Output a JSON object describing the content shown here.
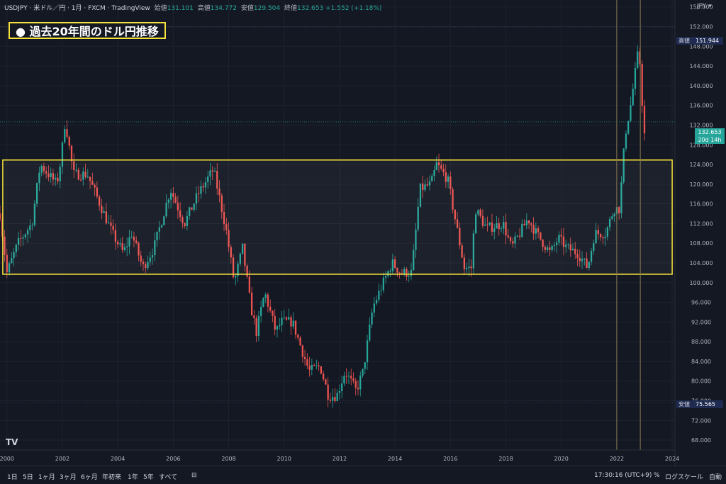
{
  "header": {
    "symbol": "USDJPY · 米ドル／円 · 1月 · FXCM · TradingView",
    "open_label": "始値",
    "open": "131.101",
    "high_label": "高値",
    "high": "134.772",
    "low_label": "安値",
    "low": "129.504",
    "close_label": "終値",
    "close": "132.653",
    "change": "+1.552 (+1.18%)"
  },
  "banner": "● 過去20年間のドル円推移",
  "currency": "JPY",
  "tags": {
    "high_label": "高値",
    "high_value": "151.944",
    "low_label": "安値",
    "low_value": "75.565",
    "last_value": "132.653",
    "countdown": "20d 14h"
  },
  "bottombar": {
    "timeframes": [
      "1日",
      "5日",
      "1ヶ月",
      "3ヶ月",
      "6ヶ月",
      "年初来",
      "1年",
      "5年",
      "すべて"
    ],
    "time": "17:30:16 (UTC+9)",
    "percent": "%",
    "log": "ログスケール",
    "auto": "自動"
  },
  "colors": {
    "up": "#26a69a",
    "down": "#ef5350",
    "box": "#f5e23c",
    "background": "#141823"
  },
  "chart_data": {
    "type": "candlestick",
    "xlim": [
      1999.75,
      2024.1
    ],
    "ylim": [
      66,
      157.4
    ],
    "x_ticks": [
      "2000",
      "2002",
      "2004",
      "2006",
      "2008",
      "2010",
      "2012",
      "2014",
      "2016",
      "2018",
      "2020",
      "2022",
      "2024"
    ],
    "y_ticks": [
      "156.000",
      "152.000",
      "148.000",
      "144.000",
      "140.000",
      "136.000",
      "132.000",
      "128.000",
      "124.000",
      "120.000",
      "116.000",
      "112.000",
      "108.000",
      "104.000",
      "100.000",
      "96.000",
      "92.000",
      "88.000",
      "84.000",
      "80.000",
      "76.000",
      "72.000",
      "68.000"
    ],
    "annotation_box": {
      "x": [
        1999.85,
        2024.0
      ],
      "y": [
        101.7,
        124.9
      ]
    },
    "vertical_lines": [
      2022.0,
      2022.85
    ],
    "key_prices": {
      "high": 151.944,
      "low": 75.565,
      "last": 132.653
    },
    "monthly_close_anchors": [
      [
        1999.75,
        114
      ],
      [
        2000.0,
        102
      ],
      [
        2000.4,
        108
      ],
      [
        2000.9,
        112
      ],
      [
        2001.2,
        124
      ],
      [
        2001.5,
        122
      ],
      [
        2001.8,
        120
      ],
      [
        2001.95,
        125
      ],
      [
        2002.1,
        133
      ],
      [
        2002.4,
        122
      ],
      [
        2002.9,
        122
      ],
      [
        2003.2,
        118
      ],
      [
        2003.8,
        110
      ],
      [
        2004.2,
        106
      ],
      [
        2004.5,
        110
      ],
      [
        2004.9,
        103
      ],
      [
        2005.3,
        107
      ],
      [
        2005.9,
        119
      ],
      [
        2006.4,
        112
      ],
      [
        2006.9,
        118
      ],
      [
        2007.45,
        123
      ],
      [
        2007.9,
        111
      ],
      [
        2008.2,
        100
      ],
      [
        2008.5,
        107
      ],
      [
        2008.8,
        95
      ],
      [
        2009.0,
        90
      ],
      [
        2009.3,
        98
      ],
      [
        2009.7,
        90
      ],
      [
        2009.9,
        92
      ],
      [
        2010.3,
        92
      ],
      [
        2010.6,
        87
      ],
      [
        2010.9,
        82
      ],
      [
        2011.3,
        83
      ],
      [
        2011.6,
        77
      ],
      [
        2011.9,
        77
      ],
      [
        2012.2,
        82
      ],
      [
        2012.6,
        78
      ],
      [
        2012.85,
        82
      ],
      [
        2013.2,
        95
      ],
      [
        2013.5,
        99
      ],
      [
        2013.9,
        104
      ],
      [
        2014.2,
        102
      ],
      [
        2014.6,
        102
      ],
      [
        2014.9,
        119
      ],
      [
        2015.3,
        120
      ],
      [
        2015.5,
        124
      ],
      [
        2015.9,
        121
      ],
      [
        2016.2,
        112
      ],
      [
        2016.5,
        103
      ],
      [
        2016.75,
        103
      ],
      [
        2016.9,
        115
      ],
      [
        2017.3,
        111
      ],
      [
        2017.9,
        112
      ],
      [
        2018.2,
        107
      ],
      [
        2018.8,
        113
      ],
      [
        2019.1,
        110
      ],
      [
        2019.6,
        106
      ],
      [
        2019.9,
        109
      ],
      [
        2020.2,
        107
      ],
      [
        2020.6,
        106
      ],
      [
        2020.95,
        103
      ],
      [
        2021.2,
        110
      ],
      [
        2021.6,
        110
      ],
      [
        2021.9,
        115
      ],
      [
        2022.1,
        115
      ],
      [
        2022.3,
        130
      ],
      [
        2022.5,
        136
      ],
      [
        2022.8,
        148
      ],
      [
        2022.9,
        138
      ],
      [
        2023.0,
        130
      ],
      [
        2023.05,
        132.653
      ]
    ]
  }
}
